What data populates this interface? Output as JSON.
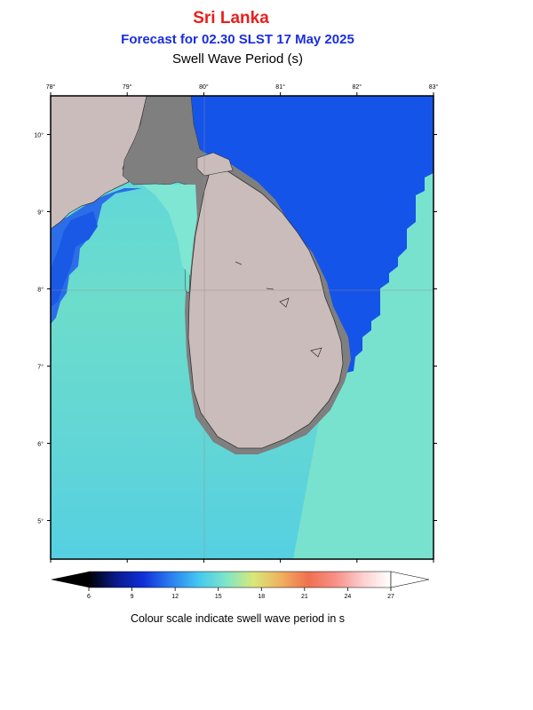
{
  "header": {
    "title": "Sri Lanka",
    "subtitle": "Forecast for  02.30 SLST 17 May 2025",
    "variable": "Swell Wave Period (s)"
  },
  "map": {
    "lon_ticks": [
      "78°",
      "79°",
      "80°",
      "81°",
      "82°",
      "83°"
    ],
    "lat_ticks": [
      "10°",
      "9°",
      "8°",
      "7°",
      "6°",
      "5°"
    ],
    "lon_range": [
      78,
      83
    ],
    "lat_range": [
      4.5,
      10.5
    ],
    "colors": {
      "land": "#cbbcbc",
      "masked_land": "#7f7f7f",
      "deep_blue": "#1550e6",
      "mid_blue": "#1e60ea",
      "cyan": "#58d2e2",
      "teal": "#6ee0cc",
      "aqua": "#7ee6d2"
    }
  },
  "colorbar": {
    "tick_labels": [
      "6",
      "9",
      "12",
      "15",
      "18",
      "21",
      "24",
      "27"
    ],
    "range": [
      6,
      27
    ],
    "colors": [
      "#000000",
      "#0a1a8c",
      "#1030d8",
      "#2a7ff0",
      "#45c8f0",
      "#7ee6c8",
      "#d8e878",
      "#f0b060",
      "#f07050",
      "#f89088",
      "#fcd0d0",
      "#ffffff"
    ]
  },
  "caption": "Colour scale indicate swell wave period in s"
}
